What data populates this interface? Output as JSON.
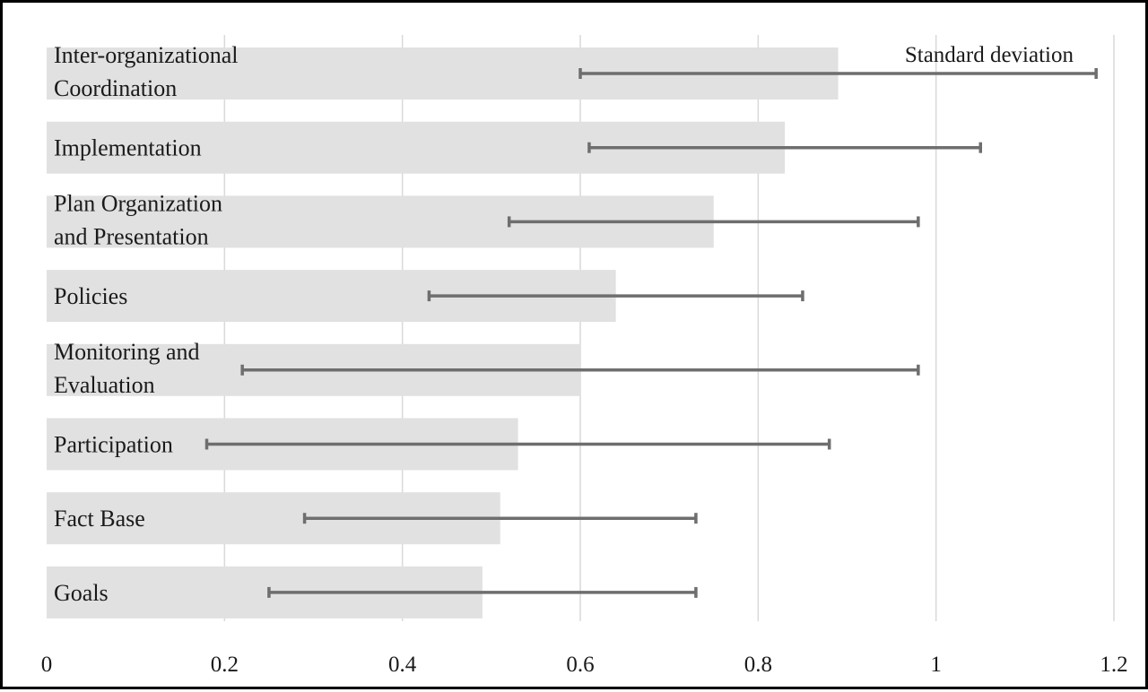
{
  "chart_data": {
    "type": "bar",
    "orientation": "horizontal",
    "categories": [
      [
        "Inter-organizational",
        "Coordination"
      ],
      [
        "Implementation"
      ],
      [
        "Plan Organization",
        "and Presentation"
      ],
      [
        "Policies"
      ],
      [
        "Monitoring and",
        "Evaluation"
      ],
      [
        "Participation"
      ],
      [
        "Fact Base"
      ],
      [
        "Goals"
      ]
    ],
    "values": [
      0.89,
      0.83,
      0.75,
      0.64,
      0.6,
      0.53,
      0.51,
      0.49
    ],
    "error_bars": [
      [
        0.6,
        1.18
      ],
      [
        0.61,
        1.05
      ],
      [
        0.52,
        0.98
      ],
      [
        0.43,
        0.85
      ],
      [
        0.22,
        0.98
      ],
      [
        0.18,
        0.88
      ],
      [
        0.29,
        0.73
      ],
      [
        0.25,
        0.73
      ]
    ],
    "error_label": "Standard deviation",
    "xlim": [
      0,
      1.2
    ],
    "xticks": [
      "0",
      "0.2",
      "0.4",
      "0.6",
      "0.8",
      "1",
      "1.2"
    ],
    "grid": "vertical",
    "legend": "top-right",
    "colors": {
      "bar": "#e1e1e1",
      "error_bar": "#6e6e6e",
      "grid": "#d9d9d9",
      "frame": "#000000"
    }
  }
}
